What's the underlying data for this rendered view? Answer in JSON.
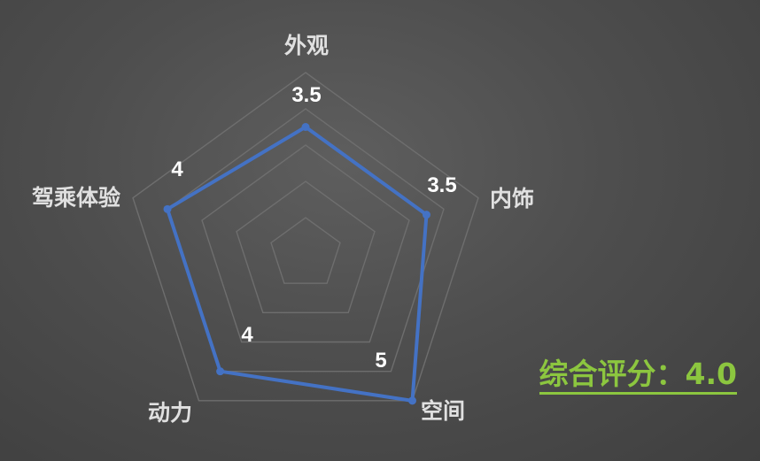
{
  "chart_data": {
    "type": "radar",
    "categories": [
      "外观",
      "内饰",
      "空间",
      "动力",
      "驾乘体验"
    ],
    "values": [
      3.5,
      3.5,
      5,
      4,
      4
    ],
    "value_labels": [
      "3.5",
      "3.5",
      "5",
      "4",
      "4"
    ],
    "range": [
      0,
      5
    ],
    "rings": 5,
    "series_color": "#4472c4",
    "grid_color": "#6e6e6e"
  },
  "summary": {
    "score_text": "综合评分：4.0",
    "score": 4.0,
    "color": "#8cc63f"
  }
}
